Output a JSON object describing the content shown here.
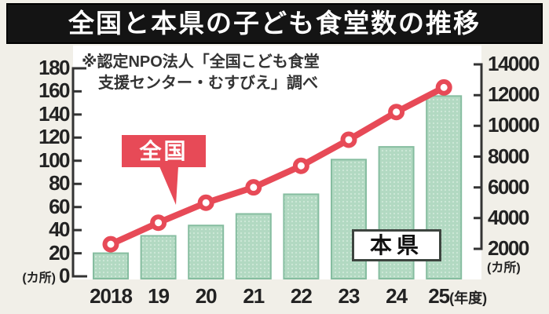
{
  "title": "全国と本県の子ども食堂数の推移",
  "source_note": {
    "line1": "※認定NPO法人「全国こども食堂",
    "line2": "支援センター・むすびえ」調べ"
  },
  "annotations": {
    "line_label": "全国",
    "bar_label": "本県"
  },
  "chart_data": {
    "type": "combo",
    "title": "全国と本県の子ども食堂数の推移",
    "categories": [
      "2018",
      "19",
      "20",
      "21",
      "22",
      "23",
      "24",
      "25"
    ],
    "x_axis_unit": "(年度)",
    "series": [
      {
        "name": "全国",
        "type": "line",
        "axis": "right",
        "values": [
          2300,
          3700,
          5000,
          6000,
          7400,
          9100,
          10900,
          12500
        ]
      },
      {
        "name": "本県",
        "type": "bar",
        "axis": "left",
        "values": [
          20,
          35,
          44,
          54,
          71,
          101,
          112,
          156
        ]
      }
    ],
    "left_axis": {
      "unit": "(カ所)",
      "min": 0,
      "max": 180,
      "step": 20,
      "tick_labels": [
        "180",
        "160",
        "140",
        "120",
        "100",
        "80",
        "60",
        "40",
        "20",
        "0"
      ]
    },
    "right_axis": {
      "unit": "(カ所)",
      "min": 2000,
      "max": 14000,
      "step": 2000,
      "tick_labels": [
        "14000",
        "12000",
        "10000",
        "8000",
        "6000",
        "4000",
        "2000"
      ]
    },
    "grid": false,
    "legend_position": "annotation boxes on plot",
    "source_note": "※認定NPO法人「全国こども食堂支援センター・むすびえ」調べ"
  },
  "colors": {
    "background": "#f1efe8",
    "plot_background": "#ffffff",
    "title_bg": "#141414",
    "title_text": "#ffffff",
    "line_red": "#e74a57",
    "bar_fill": "#b2d9c2",
    "bar_dot": "#cfe9d9",
    "bar_border": "#86bda0",
    "axis": "#333333",
    "text": "#222222",
    "bar_label_border": "#3d443f"
  }
}
